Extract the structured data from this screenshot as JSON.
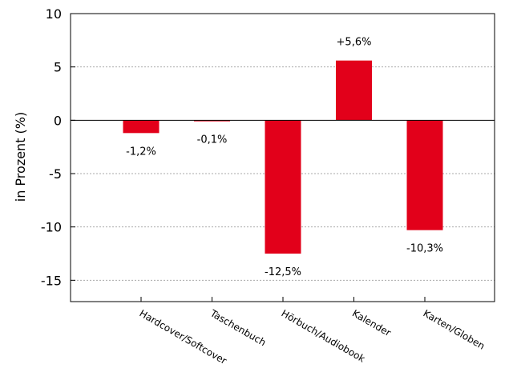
{
  "chart_data": {
    "type": "bar",
    "title": "",
    "xlabel": "",
    "ylabel": "in Prozent (%)",
    "categories": [
      "Hardcover/Softcover",
      "Taschenbuch",
      "Hörbuch/Audiobook",
      "Kalender",
      "Karten/Globen"
    ],
    "values": [
      -1.2,
      -0.1,
      -12.5,
      5.6,
      -10.3
    ],
    "data_labels": [
      "-1,2%",
      "-0,1%",
      "-12,5%",
      "+5,6%",
      "-10,3%"
    ],
    "ylim": [
      -17,
      10
    ],
    "yticks": [
      10,
      5,
      0,
      -5,
      -10,
      -15
    ],
    "ytick_labels": [
      "10",
      "5",
      "0",
      "-5",
      "-10",
      "-15"
    ],
    "grid": "horizontal dotted",
    "legend": "none",
    "bar_color": "#e2001a"
  }
}
